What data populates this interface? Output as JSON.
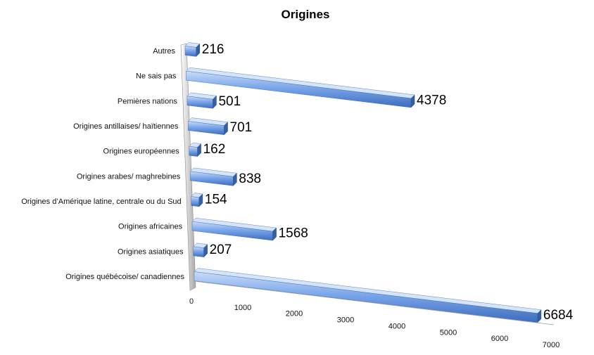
{
  "chart_data": {
    "type": "bar",
    "orientation": "horizontal",
    "style": "3d",
    "title": "Origines",
    "xlabel": "",
    "ylabel": "",
    "categories": [
      "Origines québécoise/ canadiennes",
      "Origines asiatiques",
      "Origines africaines",
      "Origines d’Amérique latine, centrale ou du Sud",
      "Origines arabes/ maghrebines",
      "Origines européennes",
      "Origines antillaises/ haïtiennes",
      "Pemières nations",
      "Ne sais pas",
      "Autres"
    ],
    "values": [
      6684,
      207,
      1568,
      154,
      838,
      162,
      701,
      501,
      4378,
      216
    ],
    "xlim": [
      0,
      7000
    ],
    "xticks": [
      0,
      1000,
      2000,
      3000,
      4000,
      5000,
      6000,
      7000
    ],
    "grid": false,
    "legend": "none",
    "colors": {
      "bar_top": "#bcd3f5",
      "bar_mid": "#6f9ee6",
      "bar_bottom": "#3f6fbf",
      "bar_end": "#365f9f",
      "wall": "#c8c8c8"
    }
  }
}
